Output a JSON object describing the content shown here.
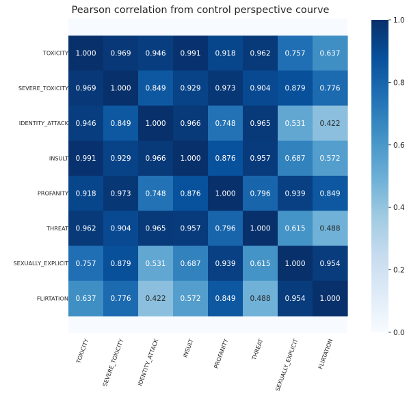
{
  "chart_data": {
    "type": "heatmap",
    "title": "Pearson correlation from control perspective courve",
    "labels": [
      "TOXICITY",
      "SEVERE_TOXICITY",
      "IDENTITY_ATTACK",
      "INSULT",
      "PROFANITY",
      "THREAT",
      "SEXUALLY_EXPLICIT",
      "FLIRTATION"
    ],
    "values": [
      [
        1.0,
        0.969,
        0.946,
        0.991,
        0.918,
        0.962,
        0.757,
        0.637
      ],
      [
        0.969,
        1.0,
        0.849,
        0.929,
        0.973,
        0.904,
        0.879,
        0.776
      ],
      [
        0.946,
        0.849,
        1.0,
        0.966,
        0.748,
        0.965,
        0.531,
        0.422
      ],
      [
        0.991,
        0.929,
        0.966,
        1.0,
        0.876,
        0.957,
        0.687,
        0.572
      ],
      [
        0.918,
        0.973,
        0.748,
        0.876,
        1.0,
        0.796,
        0.939,
        0.849
      ],
      [
        0.962,
        0.904,
        0.965,
        0.957,
        0.796,
        1.0,
        0.615,
        0.488
      ],
      [
        0.757,
        0.879,
        0.531,
        0.687,
        0.939,
        0.615,
        1.0,
        0.954
      ],
      [
        0.637,
        0.776,
        0.422,
        0.572,
        0.849,
        0.488,
        0.954,
        1.0
      ]
    ],
    "value_format": "3 decimals",
    "colorscale": "Blues",
    "vmin": 0.0,
    "vmax": 1.0,
    "colorbar_ticks": [
      "0.0",
      "0.2",
      "0.4",
      "0.6",
      "0.8",
      "1.0"
    ],
    "colorbar_position": "right",
    "x_tick_rotation_deg": 70
  }
}
